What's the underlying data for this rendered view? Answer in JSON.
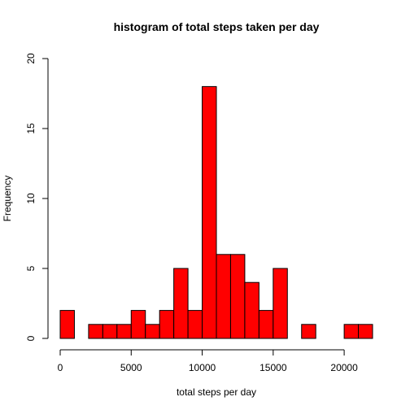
{
  "chart_data": {
    "type": "bar",
    "title": "histogram of total steps taken per day",
    "xlabel": "total steps per day",
    "ylabel": "Frequency",
    "bin_width": 1000,
    "bins": [
      {
        "start": 0,
        "end": 1000,
        "count": 2
      },
      {
        "start": 1000,
        "end": 2000,
        "count": 0
      },
      {
        "start": 2000,
        "end": 3000,
        "count": 1
      },
      {
        "start": 3000,
        "end": 4000,
        "count": 1
      },
      {
        "start": 4000,
        "end": 5000,
        "count": 1
      },
      {
        "start": 5000,
        "end": 6000,
        "count": 2
      },
      {
        "start": 6000,
        "end": 7000,
        "count": 1
      },
      {
        "start": 7000,
        "end": 8000,
        "count": 2
      },
      {
        "start": 8000,
        "end": 9000,
        "count": 5
      },
      {
        "start": 9000,
        "end": 10000,
        "count": 2
      },
      {
        "start": 10000,
        "end": 11000,
        "count": 18
      },
      {
        "start": 11000,
        "end": 12000,
        "count": 6
      },
      {
        "start": 12000,
        "end": 13000,
        "count": 6
      },
      {
        "start": 13000,
        "end": 14000,
        "count": 4
      },
      {
        "start": 14000,
        "end": 15000,
        "count": 2
      },
      {
        "start": 15000,
        "end": 16000,
        "count": 5
      },
      {
        "start": 16000,
        "end": 17000,
        "count": 0
      },
      {
        "start": 17000,
        "end": 18000,
        "count": 1
      },
      {
        "start": 18000,
        "end": 19000,
        "count": 0
      },
      {
        "start": 19000,
        "end": 20000,
        "count": 0
      },
      {
        "start": 20000,
        "end": 21000,
        "count": 1
      },
      {
        "start": 21000,
        "end": 22000,
        "count": 1
      }
    ],
    "xlim": [
      0,
      22000
    ],
    "ylim": [
      0,
      20
    ],
    "x_ticks": [
      0,
      5000,
      10000,
      15000,
      20000
    ],
    "y_ticks": [
      0,
      5,
      10,
      15,
      20
    ],
    "x_tick_labels": [
      "0",
      "5000",
      "10000",
      "15000",
      "20000"
    ],
    "y_tick_labels": [
      "0",
      "5",
      "10",
      "15",
      "20"
    ],
    "grid": false,
    "legend": "none",
    "colors": {
      "bar_fill": "#ff0000",
      "bar_stroke": "#000000"
    }
  }
}
